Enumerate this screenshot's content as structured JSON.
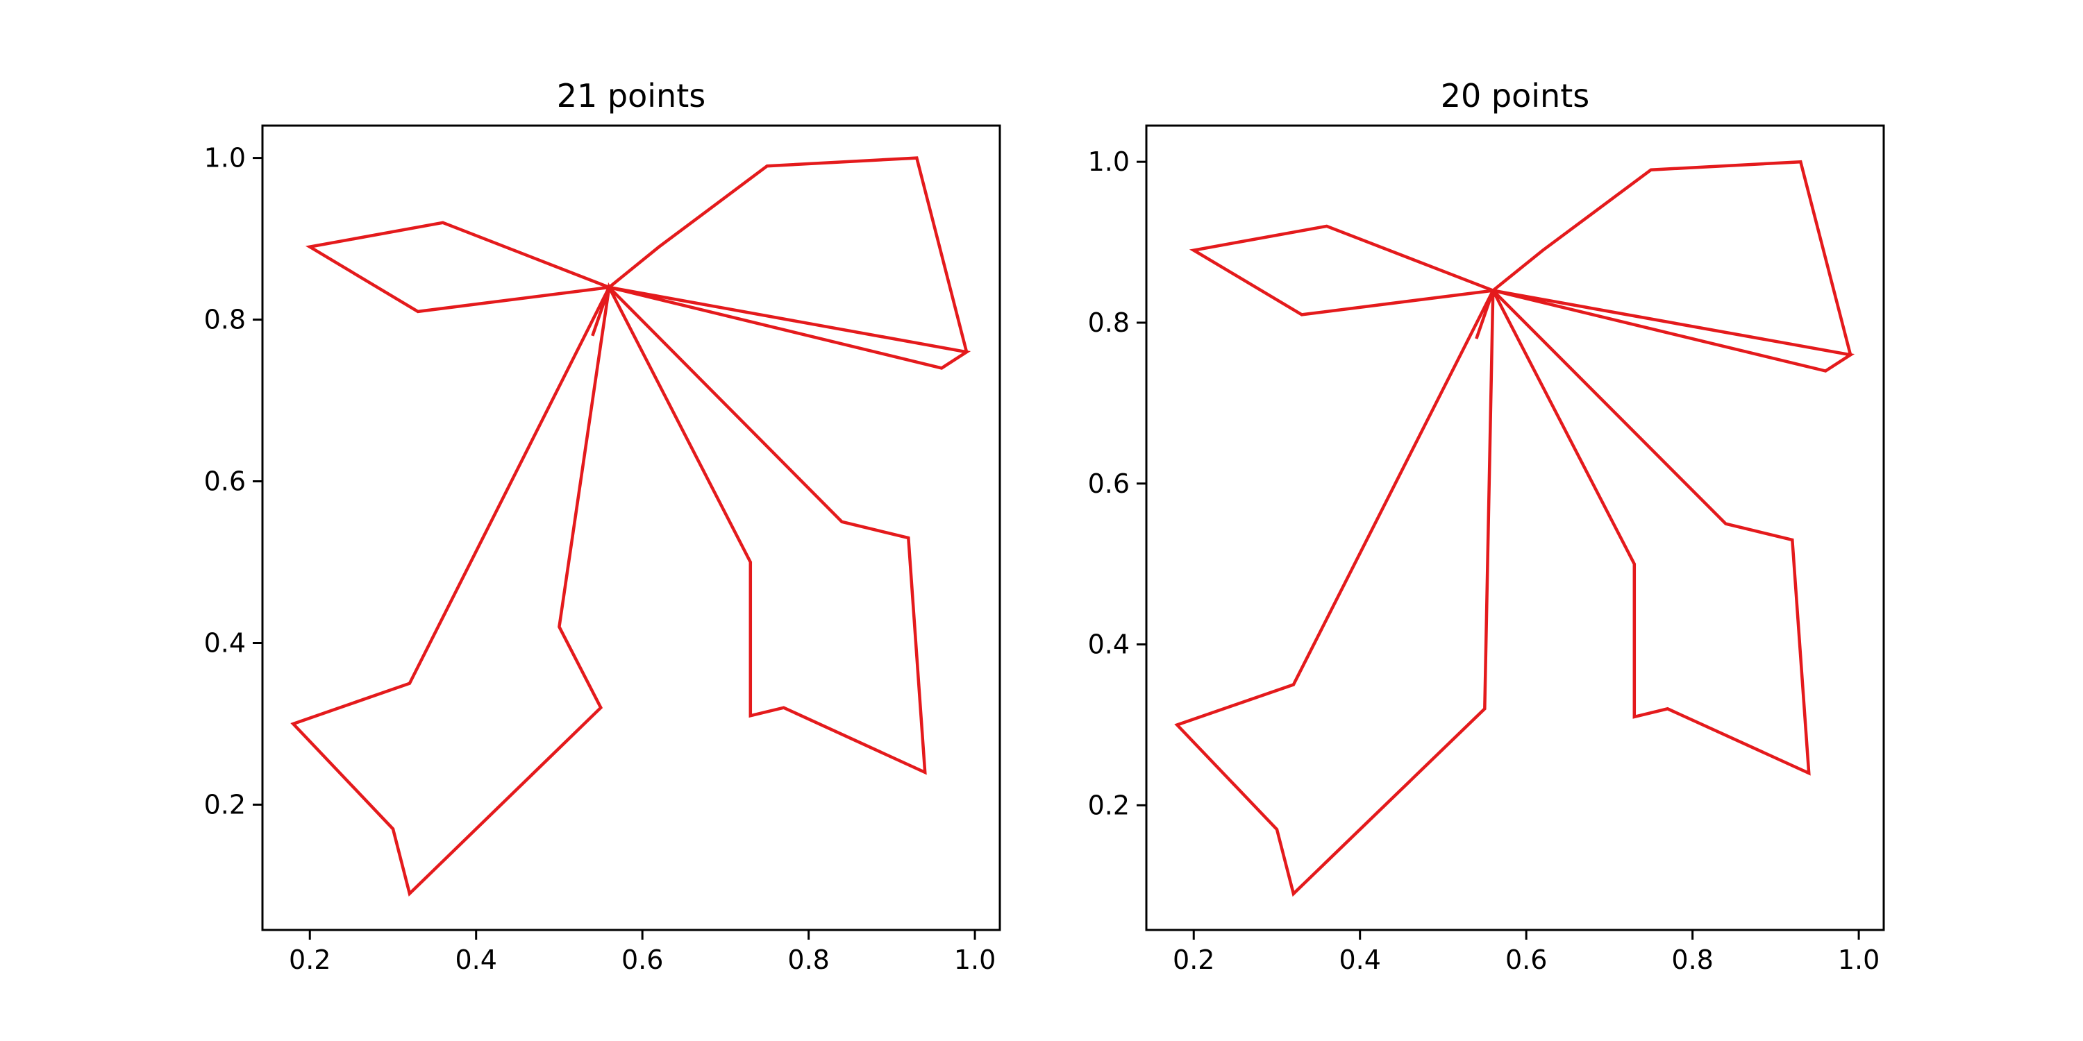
{
  "figure": {
    "background": "#ffffff"
  },
  "chart_data": [
    {
      "type": "line",
      "title": "21 points",
      "xlabel": "",
      "ylabel": "",
      "xlim": [
        0.143,
        1.03
      ],
      "ylim": [
        0.045,
        1.04
      ],
      "xticks": [
        0.2,
        0.4,
        0.6,
        0.8,
        1.0
      ],
      "yticks": [
        0.2,
        0.4,
        0.6,
        0.8,
        1.0
      ],
      "xtick_labels": [
        "0.2",
        "0.4",
        "0.6",
        "0.8",
        "1.0"
      ],
      "ytick_labels": [
        "0.2",
        "0.4",
        "0.6",
        "0.8",
        "1.0"
      ],
      "grid": false,
      "legend": false,
      "series": [
        {
          "color": "#e41a1c",
          "x": [
            0.54,
            0.56,
            0.32,
            0.18,
            0.3,
            0.32,
            0.55,
            0.5,
            0.56,
            0.73,
            0.73,
            0.77,
            0.94,
            0.92,
            0.84,
            0.56,
            0.99,
            0.96,
            0.56,
            0.33,
            0.2,
            0.36,
            0.56,
            0.62,
            0.75,
            0.93,
            0.99,
            0.96
          ],
          "y": [
            0.78,
            0.84,
            0.35,
            0.3,
            0.17,
            0.09,
            0.32,
            0.42,
            0.84,
            0.5,
            0.31,
            0.32,
            0.24,
            0.53,
            0.55,
            0.84,
            0.76,
            0.74,
            0.84,
            0.81,
            0.89,
            0.92,
            0.84,
            0.89,
            0.99,
            1.0,
            0.76,
            0.74
          ]
        }
      ]
    },
    {
      "type": "line",
      "title": "20 points",
      "xlabel": "",
      "ylabel": "",
      "xlim": [
        0.143,
        1.03
      ],
      "ylim": [
        0.045,
        1.045
      ],
      "xticks": [
        0.2,
        0.4,
        0.6,
        0.8,
        1.0
      ],
      "yticks": [
        0.2,
        0.4,
        0.6,
        0.8,
        1.0
      ],
      "xtick_labels": [
        "0.2",
        "0.4",
        "0.6",
        "0.8",
        "1.0"
      ],
      "ytick_labels": [
        "0.2",
        "0.4",
        "0.6",
        "0.8",
        "1.0"
      ],
      "grid": false,
      "legend": false,
      "series": [
        {
          "color": "#e41a1c",
          "x": [
            0.54,
            0.56,
            0.32,
            0.18,
            0.3,
            0.32,
            0.55,
            0.56,
            0.73,
            0.73,
            0.77,
            0.94,
            0.92,
            0.84,
            0.56,
            0.99,
            0.96,
            0.56,
            0.33,
            0.2,
            0.36,
            0.56,
            0.62,
            0.75,
            0.93,
            0.99,
            0.96
          ],
          "y": [
            0.78,
            0.84,
            0.35,
            0.3,
            0.17,
            0.09,
            0.32,
            0.84,
            0.5,
            0.31,
            0.32,
            0.24,
            0.53,
            0.55,
            0.84,
            0.76,
            0.74,
            0.84,
            0.81,
            0.89,
            0.92,
            0.84,
            0.89,
            0.99,
            1.0,
            0.76,
            0.74
          ]
        }
      ]
    }
  ]
}
